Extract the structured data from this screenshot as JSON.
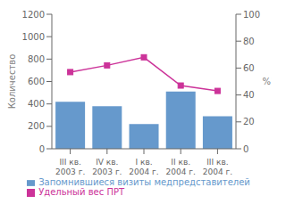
{
  "chart_data": {
    "type": "bar",
    "categories": [
      [
        "III кв.",
        "2003 г."
      ],
      [
        "IV кв.",
        "2003 г."
      ],
      [
        "I кв.",
        "2004 г."
      ],
      [
        "II кв.",
        "2004 г."
      ],
      [
        "III кв.",
        "2004 г."
      ]
    ],
    "series": [
      {
        "name": "Запомнившиеся визиты медпредставителей",
        "type": "bar",
        "color": "#6699cc",
        "values": [
          420,
          380,
          220,
          510,
          290
        ]
      },
      {
        "name": "Удельный вес ПРТ",
        "type": "line",
        "color": "#cc3399",
        "marker": "square",
        "axis": "y2",
        "values": [
          57,
          62,
          68,
          47,
          43
        ]
      }
    ],
    "ylabel": "Количество",
    "y2label": "%",
    "ylim": [
      0,
      1200
    ],
    "yticks": [
      0,
      200,
      400,
      600,
      800,
      1000,
      1200
    ],
    "y2lim": [
      0,
      100
    ],
    "y2ticks": [
      0,
      20,
      40,
      60,
      80,
      100
    ],
    "legend": "bottom",
    "grid": false
  }
}
